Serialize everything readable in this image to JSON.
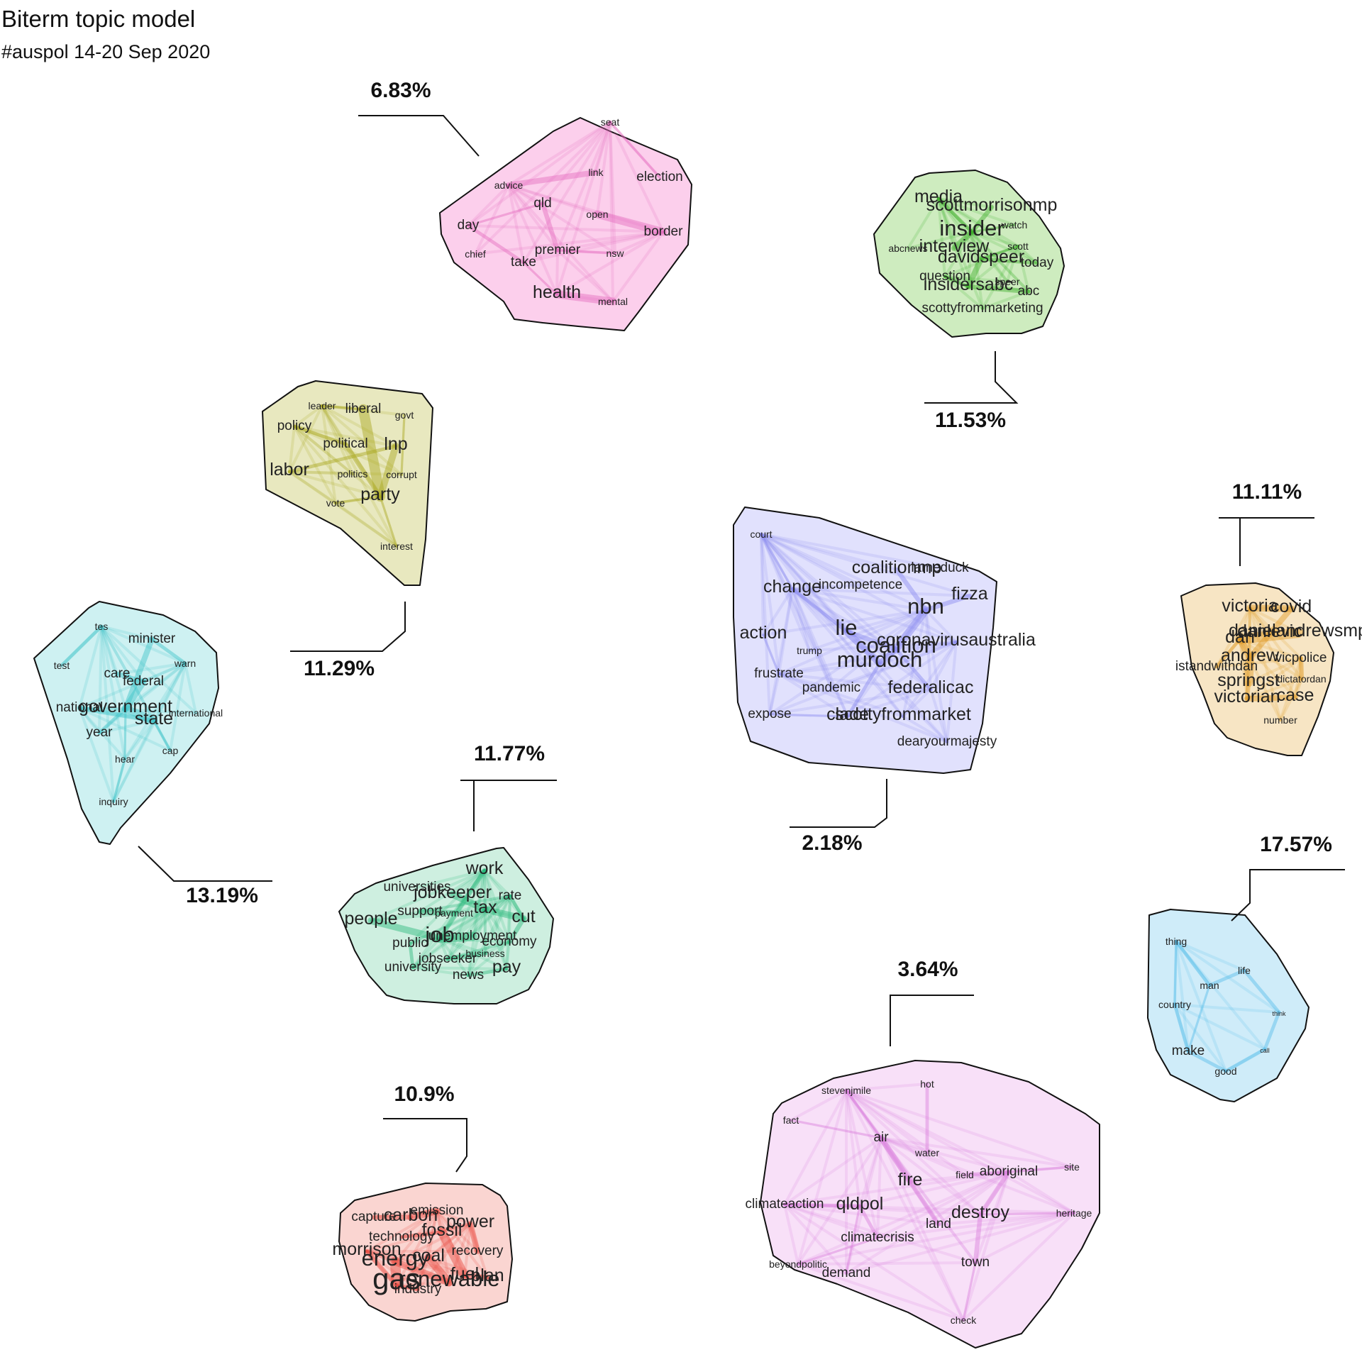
{
  "title": "Biterm topic model",
  "subtitle": "#auspol 14-20 Sep 2020",
  "topics": [
    {
      "id": "health-border",
      "percent": "6.83%",
      "color": "#f9a8dc",
      "edge_color": "#e46bbf",
      "words": [
        {
          "w": "seat",
          "s": 1
        },
        {
          "w": "link",
          "s": 1
        },
        {
          "w": "election",
          "s": 2
        },
        {
          "w": "advice",
          "s": 1
        },
        {
          "w": "qld",
          "s": 2
        },
        {
          "w": "open",
          "s": 1
        },
        {
          "w": "border",
          "s": 2
        },
        {
          "w": "day",
          "s": 2
        },
        {
          "w": "chief",
          "s": 1
        },
        {
          "w": "premier",
          "s": 2
        },
        {
          "w": "nsw",
          "s": 1
        },
        {
          "w": "take",
          "s": 2
        },
        {
          "w": "health",
          "s": 3
        },
        {
          "w": "mental",
          "s": 1
        }
      ]
    },
    {
      "id": "insider",
      "percent": "11.53%",
      "color": "#a6dd8a",
      "edge_color": "#3fb02a",
      "words": [
        {
          "w": "media",
          "s": 3
        },
        {
          "w": "scottmorrisonmp",
          "s": 3
        },
        {
          "w": "watch",
          "s": 1
        },
        {
          "w": "insider",
          "s": 4
        },
        {
          "w": "abcnews",
          "s": 1
        },
        {
          "w": "interview",
          "s": 3
        },
        {
          "w": "scott",
          "s": 1
        },
        {
          "w": "davidspeer",
          "s": 3
        },
        {
          "w": "today",
          "s": 2
        },
        {
          "w": "question",
          "s": 2
        },
        {
          "w": "speer",
          "s": 1
        },
        {
          "w": "insidersabc",
          "s": 3
        },
        {
          "w": "abc",
          "s": 2
        },
        {
          "w": "scottyfrommarketing",
          "s": 2
        }
      ]
    },
    {
      "id": "party",
      "percent": "11.29%",
      "color": "#d6d58a",
      "edge_color": "#a9a61a",
      "words": [
        {
          "w": "leader",
          "s": 1
        },
        {
          "w": "liberal",
          "s": 2
        },
        {
          "w": "govt",
          "s": 1
        },
        {
          "w": "policy",
          "s": 2
        },
        {
          "w": "political",
          "s": 2
        },
        {
          "w": "lnp",
          "s": 3
        },
        {
          "w": "labor",
          "s": 3
        },
        {
          "w": "politics",
          "s": 1
        },
        {
          "w": "corrupt",
          "s": 1
        },
        {
          "w": "vote",
          "s": 1
        },
        {
          "w": "party",
          "s": 3
        },
        {
          "w": "interest",
          "s": 1
        }
      ]
    },
    {
      "id": "murdoch",
      "percent": "2.18%",
      "color": "#c9c9fb",
      "edge_color": "#8a8af0",
      "words": [
        {
          "w": "court",
          "s": 1
        },
        {
          "w": "coalitionmp",
          "s": 3
        },
        {
          "w": "lameduck",
          "s": 2
        },
        {
          "w": "change",
          "s": 3
        },
        {
          "w": "incompetence",
          "s": 2
        },
        {
          "w": "fizza",
          "s": 3
        },
        {
          "w": "nbn",
          "s": 4
        },
        {
          "w": "action",
          "s": 3
        },
        {
          "w": "lie",
          "s": 4
        },
        {
          "w": "coronavirusaustralia",
          "s": 3
        },
        {
          "w": "trump",
          "s": 1
        },
        {
          "w": "coalition",
          "s": 4
        },
        {
          "w": "frustrate",
          "s": 2
        },
        {
          "w": "murdoch",
          "s": 4
        },
        {
          "w": "pandemic",
          "s": 2
        },
        {
          "w": "federalicac",
          "s": 3
        },
        {
          "w": "expose",
          "s": 2
        },
        {
          "w": "clade",
          "s": 3
        },
        {
          "w": "scottyfrommarket",
          "s": 3
        },
        {
          "w": "dearyourmajesty",
          "s": 2
        }
      ]
    },
    {
      "id": "victoria",
      "percent": "11.11%",
      "color": "#f1cf94",
      "edge_color": "#e09a23",
      "words": [
        {
          "w": "victoria",
          "s": 3
        },
        {
          "w": "covid",
          "s": 3
        },
        {
          "w": "danielandrewsmp",
          "s": 3
        },
        {
          "w": "dan",
          "s": 3
        },
        {
          "w": "danlevic",
          "s": 3
        },
        {
          "w": "andrew",
          "s": 3
        },
        {
          "w": "vicpolice",
          "s": 2
        },
        {
          "w": "istandwithdan",
          "s": 2
        },
        {
          "w": "springst",
          "s": 3
        },
        {
          "w": "dictatordan",
          "s": 1
        },
        {
          "w": "victorian",
          "s": 3
        },
        {
          "w": "case",
          "s": 3
        },
        {
          "w": "number",
          "s": 1
        }
      ]
    },
    {
      "id": "government",
      "percent": "13.19%",
      "color": "#a6e5e7",
      "edge_color": "#3cc3c8",
      "words": [
        {
          "w": "tes",
          "s": 1
        },
        {
          "w": "minister",
          "s": 2
        },
        {
          "w": "test",
          "s": 1
        },
        {
          "w": "warn",
          "s": 1
        },
        {
          "w": "care",
          "s": 2
        },
        {
          "w": "federal",
          "s": 2
        },
        {
          "w": "national",
          "s": 2
        },
        {
          "w": "government",
          "s": 3
        },
        {
          "w": "international",
          "s": 1
        },
        {
          "w": "state",
          "s": 3
        },
        {
          "w": "year",
          "s": 2
        },
        {
          "w": "cap",
          "s": 1
        },
        {
          "w": "hear",
          "s": 1
        },
        {
          "w": "inquiry",
          "s": 1
        }
      ]
    },
    {
      "id": "job",
      "percent": "11.77%",
      "color": "#a6e2c6",
      "edge_color": "#29b77a",
      "words": [
        {
          "w": "work",
          "s": 3
        },
        {
          "w": "universities",
          "s": 2
        },
        {
          "w": "jobkeeper",
          "s": 3
        },
        {
          "w": "rate",
          "s": 2
        },
        {
          "w": "support",
          "s": 2
        },
        {
          "w": "payment",
          "s": 1
        },
        {
          "w": "tax",
          "s": 3
        },
        {
          "w": "people",
          "s": 3
        },
        {
          "w": "cut",
          "s": 3
        },
        {
          "w": "job",
          "s": 4
        },
        {
          "w": "unemployment",
          "s": 2
        },
        {
          "w": "public",
          "s": 2
        },
        {
          "w": "economy",
          "s": 2
        },
        {
          "w": "jobseeker",
          "s": 2
        },
        {
          "w": "business",
          "s": 1
        },
        {
          "w": "university",
          "s": 2
        },
        {
          "w": "news",
          "s": 2
        },
        {
          "w": "pay",
          "s": 3
        }
      ]
    },
    {
      "id": "energy",
      "percent": "10.9%",
      "color": "#f6b3ab",
      "edge_color": "#e8463c",
      "words": [
        {
          "w": "emission",
          "s": 2
        },
        {
          "w": "capture",
          "s": 2
        },
        {
          "w": "carbon",
          "s": 3
        },
        {
          "w": "power",
          "s": 3
        },
        {
          "w": "fossil",
          "s": 3
        },
        {
          "w": "technology",
          "s": 2
        },
        {
          "w": "morrison",
          "s": 3
        },
        {
          "w": "recovery",
          "s": 2
        },
        {
          "w": "energy",
          "s": 4
        },
        {
          "w": "coal",
          "s": 3
        },
        {
          "w": "fuel",
          "s": 3
        },
        {
          "w": "plan",
          "s": 3
        },
        {
          "w": "gas",
          "s": 5
        },
        {
          "w": "renewable",
          "s": 4
        },
        {
          "w": "industry",
          "s": 2
        }
      ]
    },
    {
      "id": "fire",
      "percent": "3.64%",
      "color": "#f3c6f3",
      "edge_color": "#d97ddb",
      "words": [
        {
          "w": "stevenjmile",
          "s": 1
        },
        {
          "w": "hot",
          "s": 1
        },
        {
          "w": "fact",
          "s": 1
        },
        {
          "w": "air",
          "s": 2
        },
        {
          "w": "water",
          "s": 1
        },
        {
          "w": "field",
          "s": 1
        },
        {
          "w": "aboriginal",
          "s": 2
        },
        {
          "w": "site",
          "s": 1
        },
        {
          "w": "fire",
          "s": 3
        },
        {
          "w": "climateaction",
          "s": 2
        },
        {
          "w": "qldpol",
          "s": 3
        },
        {
          "w": "destroy",
          "s": 3
        },
        {
          "w": "heritage",
          "s": 1
        },
        {
          "w": "land",
          "s": 2
        },
        {
          "w": "climatecrisis",
          "s": 2
        },
        {
          "w": "beyondpolitic",
          "s": 1
        },
        {
          "w": "town",
          "s": 2
        },
        {
          "w": "demand",
          "s": 2
        },
        {
          "w": "check",
          "s": 1
        }
      ]
    },
    {
      "id": "life",
      "percent": "17.57%",
      "color": "#a8dcf4",
      "edge_color": "#55bde8",
      "words": [
        {
          "w": "thing",
          "s": 1
        },
        {
          "w": "life",
          "s": 1
        },
        {
          "w": "man",
          "s": 1
        },
        {
          "w": "country",
          "s": 1
        },
        {
          "w": "think",
          "s": 0
        },
        {
          "w": "make",
          "s": 2
        },
        {
          "w": "call",
          "s": 0
        },
        {
          "w": "good",
          "s": 1
        }
      ]
    }
  ]
}
